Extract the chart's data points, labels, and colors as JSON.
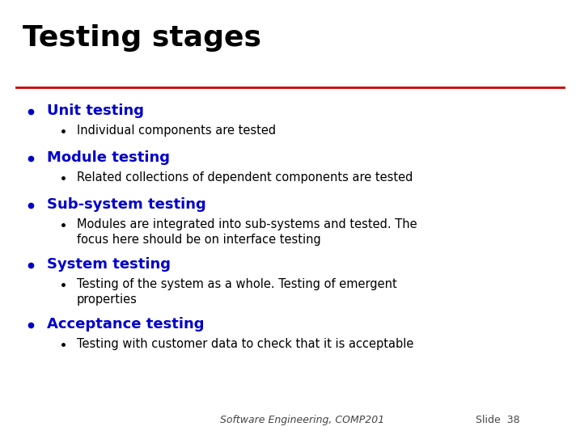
{
  "title": "Testing stages",
  "title_color": "#000000",
  "title_fontsize": 26,
  "title_fontweight": "bold",
  "line_color": "#CC0000",
  "background_color": "#FFFFFF",
  "bullet_color": "#0000CC",
  "sub_bullet_color": "#000000",
  "footer_left": "Software Engineering, COMP201",
  "footer_right": "Slide  38",
  "footer_color": "#444444",
  "footer_fontsize": 9,
  "heading_fontsize": 13,
  "sub_fontsize": 10.5,
  "items": [
    {
      "heading": "Unit testing",
      "sub": [
        "Individual components are tested"
      ],
      "sub_lines": [
        1
      ]
    },
    {
      "heading": "Module testing",
      "sub": [
        "Related collections of dependent components are tested"
      ],
      "sub_lines": [
        1
      ]
    },
    {
      "heading": "Sub-system testing",
      "sub": [
        "Modules are integrated into sub-systems and tested. The\nfocus here should be on interface testing"
      ],
      "sub_lines": [
        2
      ]
    },
    {
      "heading": "System testing",
      "sub": [
        "Testing of the system as a whole. Testing of emergent\nproperties"
      ],
      "sub_lines": [
        2
      ]
    },
    {
      "heading": "Acceptance testing",
      "sub": [
        "Testing with customer data to check that it is acceptable"
      ],
      "sub_lines": [
        1
      ]
    }
  ]
}
